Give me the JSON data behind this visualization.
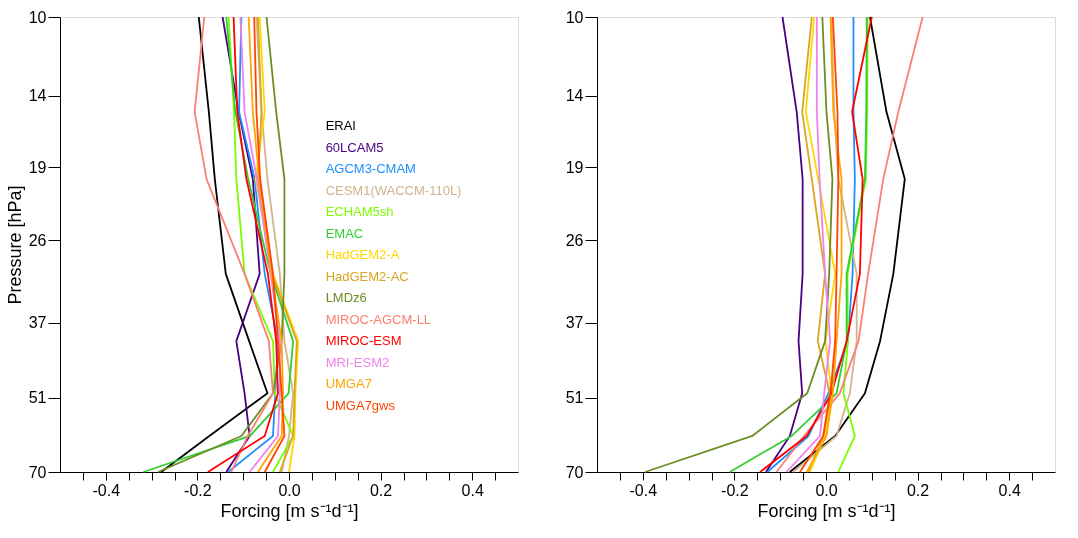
{
  "chart_data": [
    {
      "type": "line",
      "xlabel": "Forcing [m s⁻¹d⁻¹]",
      "ylabel": "Pressure [hPa]",
      "legend": "right",
      "grid": false,
      "marker": "none",
      "line_style": "solid",
      "log": "y",
      "xlim": [
        -0.5,
        0.5
      ],
      "ylim": [
        70,
        10
      ],
      "xticks": [
        {
          "value": -0.45,
          "label": null
        },
        -0.4,
        {
          "value": -0.35,
          "label": null
        },
        {
          "value": -0.3,
          "label": null
        },
        {
          "value": -0.25,
          "label": null
        },
        -0.2,
        {
          "value": -0.15,
          "label": null
        },
        {
          "value": -0.1,
          "label": null
        },
        {
          "value": -0.05,
          "label": null
        },
        {
          "value": 0,
          "label": "0.0"
        },
        {
          "value": 0.05,
          "label": null
        },
        {
          "value": 0.1,
          "label": null
        },
        {
          "value": 0.15,
          "label": null
        },
        0.2,
        {
          "value": 0.25,
          "label": null
        },
        {
          "value": 0.3,
          "label": null
        },
        {
          "value": 0.35,
          "label": null
        },
        0.4,
        {
          "value": 0.45,
          "label": null
        }
      ],
      "yticks": [
        10,
        14,
        19,
        26,
        37,
        51,
        70
      ],
      "series": [
        {
          "name": "ERAI",
          "color": "#000000",
          "x": [
            -0.197,
            -0.175,
            -0.162,
            -0.138,
            -0.087,
            -0.047,
            -0.174,
            -0.279
          ],
          "values": [
            10,
            15,
            20,
            30,
            40,
            50,
            60,
            70
          ]
        },
        {
          "name": "60LCAM5",
          "color": "#4b0082",
          "x": [
            -0.145,
            -0.11,
            -0.079,
            -0.064,
            -0.115,
            -0.097,
            -0.086,
            -0.137
          ],
          "values": [
            10,
            15,
            20,
            30,
            40,
            50,
            60,
            70
          ]
        },
        {
          "name": "AGCM3-CMAM",
          "color": "#1e90ff",
          "x": [
            -0.104,
            -0.109,
            -0.075,
            -0.053,
            -0.024,
            -0.03,
            -0.035,
            -0.133
          ],
          "values": [
            10,
            15,
            20,
            30,
            40,
            50,
            60,
            70
          ]
        },
        {
          "name": "CESM1(WACCM-110L)",
          "color": "#d2b48c",
          "x": [
            -0.071,
            -0.06,
            -0.047,
            -0.02,
            -0.01,
            0.009,
            0.0,
            -0.016
          ],
          "values": [
            10,
            15,
            20,
            30,
            40,
            50,
            60,
            70
          ]
        },
        {
          "name": "ECHAM5sh",
          "color": "#7cfc00",
          "x": [
            -0.132,
            -0.12,
            -0.115,
            -0.097,
            -0.035,
            -0.031,
            0.009,
            -0.035
          ],
          "values": [
            10,
            15,
            20,
            30,
            40,
            50,
            60,
            70
          ]
        },
        {
          "name": "EMAC",
          "color": "#32cd32",
          "x": [
            -0.137,
            -0.117,
            -0.089,
            -0.04,
            0.009,
            -0.001,
            -0.085,
            -0.318
          ],
          "values": [
            10,
            15,
            20,
            30,
            40,
            50,
            60,
            70
          ]
        },
        {
          "name": "HadGEM2-A",
          "color": "#ffd700",
          "x": [
            -0.064,
            -0.053,
            -0.073,
            -0.035,
            0.02,
            0.014,
            0.012,
            0.0
          ],
          "values": [
            10,
            15,
            20,
            30,
            40,
            50,
            60,
            70
          ]
        },
        {
          "name": "HadGEM2-AC",
          "color": "#daa520",
          "x": [
            -0.068,
            -0.06,
            -0.068,
            -0.037,
            0.017,
            0.012,
            0.009,
            -0.02
          ],
          "values": [
            10,
            15,
            20,
            30,
            40,
            50,
            60,
            70
          ]
        },
        {
          "name": "LMDz6",
          "color": "#6b8e23",
          "x": [
            -0.049,
            -0.028,
            -0.01,
            -0.01,
            -0.016,
            -0.035,
            -0.104,
            -0.286
          ],
          "values": [
            10,
            15,
            20,
            30,
            40,
            50,
            60,
            70
          ]
        },
        {
          "name": "MIROC-AGCM-LL",
          "color": "#fa8072",
          "x": [
            -0.185,
            -0.206,
            -0.18,
            -0.097,
            -0.044,
            -0.035,
            -0.09,
            -0.126
          ],
          "values": [
            10,
            15,
            20,
            30,
            40,
            50,
            60,
            70
          ]
        },
        {
          "name": "MIROC-ESM",
          "color": "#ff0000",
          "x": [
            -0.121,
            -0.113,
            -0.093,
            -0.046,
            -0.028,
            -0.024,
            -0.053,
            -0.177
          ],
          "values": [
            10,
            15,
            20,
            30,
            40,
            50,
            60,
            70
          ]
        },
        {
          "name": "MRI-ESM2",
          "color": "#ee82ee",
          "x": [
            -0.106,
            -0.097,
            -0.07,
            -0.04,
            -0.02,
            -0.02,
            -0.024,
            -0.086
          ],
          "values": [
            10,
            15,
            20,
            30,
            40,
            50,
            60,
            70
          ]
        },
        {
          "name": "UMGA7",
          "color": "#ffa500",
          "x": [
            -0.088,
            -0.079,
            -0.065,
            -0.038,
            -0.016,
            -0.013,
            -0.016,
            -0.068
          ],
          "values": [
            10,
            15,
            20,
            30,
            40,
            50,
            60,
            70
          ]
        },
        {
          "name": "UMGA7gws",
          "color": "#ff4500",
          "x": [
            -0.076,
            -0.071,
            -0.063,
            -0.035,
            -0.024,
            -0.016,
            -0.01,
            -0.053
          ],
          "values": [
            10,
            15,
            20,
            30,
            40,
            50,
            60,
            70
          ]
        }
      ]
    },
    {
      "type": "line",
      "xlabel": "Forcing [m s⁻¹d⁻¹]",
      "grid": false,
      "marker": "none",
      "line_style": "solid",
      "log": "y",
      "xlim": [
        -0.5,
        0.5
      ],
      "ylim": [
        70,
        10
      ],
      "xticks": [
        {
          "value": -0.45,
          "label": null
        },
        -0.4,
        {
          "value": -0.35,
          "label": null
        },
        {
          "value": -0.3,
          "label": null
        },
        {
          "value": -0.25,
          "label": null
        },
        -0.2,
        {
          "value": -0.15,
          "label": null
        },
        {
          "value": -0.1,
          "label": null
        },
        {
          "value": -0.05,
          "label": null
        },
        {
          "value": 0,
          "label": "0.0"
        },
        {
          "value": 0.05,
          "label": null
        },
        {
          "value": 0.1,
          "label": null
        },
        {
          "value": 0.15,
          "label": null
        },
        0.2,
        {
          "value": 0.25,
          "label": null
        },
        {
          "value": 0.3,
          "label": null
        },
        {
          "value": 0.35,
          "label": null
        },
        0.4,
        {
          "value": 0.45,
          "label": null
        }
      ],
      "yticks": [
        10,
        14,
        19,
        26,
        37,
        51,
        70
      ],
      "series": [
        {
          "color": "#000000",
          "x": [
            0.096,
            0.132,
            0.172,
            0.147,
            0.118,
            0.085,
            0.02,
            -0.079
          ],
          "values": [
            10,
            15,
            20,
            30,
            40,
            50,
            60,
            70
          ]
        },
        {
          "color": "#4b0082",
          "x": [
            -0.095,
            -0.064,
            -0.051,
            -0.051,
            -0.06,
            -0.052,
            -0.079,
            -0.131
          ],
          "values": [
            10,
            15,
            20,
            30,
            40,
            50,
            60,
            70
          ]
        },
        {
          "color": "#1e90ff",
          "x": [
            0.06,
            0.06,
            0.063,
            0.058,
            0.048,
            0.005,
            -0.038,
            -0.128
          ],
          "values": [
            10,
            15,
            20,
            30,
            40,
            50,
            60,
            70
          ]
        },
        {
          "color": "#d2b48c",
          "x": [
            0.012,
            0.018,
            0.027,
            0.067,
            0.067,
            0.052,
            0.023,
            -0.072
          ],
          "values": [
            10,
            15,
            20,
            30,
            40,
            50,
            60,
            70
          ]
        },
        {
          "color": "#7cfc00",
          "x": [
            0.091,
            0.09,
            0.087,
            0.047,
            0.048,
            0.038,
            0.063,
            0.027
          ],
          "values": [
            10,
            15,
            20,
            30,
            40,
            50,
            60,
            70
          ]
        },
        {
          "color": "#32cd32",
          "x": [
            0.089,
            0.088,
            0.085,
            0.045,
            0.045,
            0.023,
            -0.075,
            -0.21
          ],
          "values": [
            10,
            15,
            20,
            30,
            40,
            50,
            60,
            70
          ]
        },
        {
          "color": "#ffd700",
          "x": [
            -0.026,
            -0.044,
            -0.017,
            0.02,
            -0.001,
            0.012,
            -0.002,
            -0.035
          ],
          "values": [
            10,
            15,
            20,
            30,
            40,
            50,
            60,
            70
          ]
        },
        {
          "color": "#daa520",
          "x": [
            -0.031,
            -0.052,
            -0.031,
            -0.002,
            -0.018,
            0.008,
            -0.006,
            -0.039
          ],
          "values": [
            10,
            15,
            20,
            30,
            40,
            50,
            60,
            70
          ]
        },
        {
          "color": "#6b8e23",
          "x": [
            -0.008,
            0.001,
            0.014,
            0.007,
            -0.002,
            -0.041,
            -0.161,
            -0.395
          ],
          "values": [
            10,
            15,
            20,
            30,
            40,
            50,
            60,
            70
          ]
        },
        {
          "color": "#fa8072",
          "x": [
            0.211,
            0.158,
            0.125,
            0.092,
            0.071,
            0.03,
            -0.048,
            -0.108
          ],
          "values": [
            10,
            15,
            20,
            30,
            40,
            50,
            60,
            70
          ]
        },
        {
          "color": "#ff0000",
          "x": [
            0.1,
            0.057,
            0.08,
            0.074,
            0.045,
            0.012,
            -0.042,
            -0.144
          ],
          "values": [
            10,
            15,
            20,
            30,
            40,
            50,
            60,
            70
          ]
        },
        {
          "color": "#ee82ee",
          "x": [
            -0.02,
            -0.02,
            -0.014,
            -0.002,
            0.009,
            -0.004,
            -0.013,
            -0.086
          ],
          "values": [
            10,
            15,
            20,
            30,
            40,
            50,
            60,
            70
          ]
        },
        {
          "color": "#ffa500",
          "x": [
            0.01,
            0.016,
            0.034,
            0.034,
            0.023,
            0.015,
            0.001,
            -0.042
          ],
          "values": [
            10,
            15,
            20,
            30,
            40,
            50,
            60,
            70
          ]
        },
        {
          "color": "#ff4500",
          "x": [
            0.015,
            0.025,
            0.027,
            0.023,
            0.02,
            0.01,
            -0.006,
            -0.057
          ],
          "values": [
            10,
            15,
            20,
            30,
            40,
            50,
            60,
            70
          ]
        }
      ]
    }
  ]
}
